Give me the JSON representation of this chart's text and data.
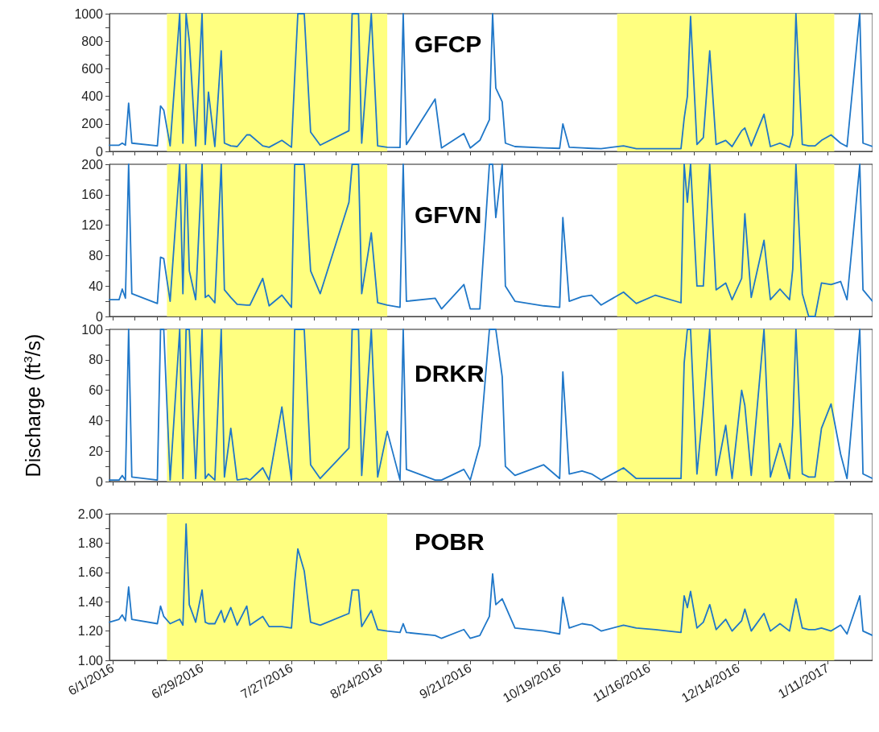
{
  "chart_data": [
    {
      "type": "line",
      "title": "GFCP",
      "tick_labels": "y",
      "xlim": [
        "2016-05-31",
        "2017-01-25"
      ],
      "xticks": [
        {
          "value": "2016-06-01",
          "label": null
        },
        {
          "value": "2016-06-08",
          "label": null
        },
        {
          "value": "2016-06-15",
          "label": null
        },
        {
          "value": "2016-06-22",
          "label": null
        },
        {
          "value": "2016-06-29",
          "label": null
        },
        {
          "value": "2016-07-06",
          "label": null
        },
        {
          "value": "2016-07-13",
          "label": null
        },
        {
          "value": "2016-07-20",
          "label": null
        },
        {
          "value": "2016-07-27",
          "label": null
        },
        {
          "value": "2016-08-03",
          "label": null
        },
        {
          "value": "2016-08-10",
          "label": null
        },
        {
          "value": "2016-08-17",
          "label": null
        },
        {
          "value": "2016-08-24",
          "label": null
        },
        {
          "value": "2016-08-31",
          "label": null
        },
        {
          "value": "2016-09-07",
          "label": null
        },
        {
          "value": "2016-09-14",
          "label": null
        },
        {
          "value": "2016-09-21",
          "label": null
        },
        {
          "value": "2016-09-28",
          "label": null
        },
        {
          "value": "2016-10-05",
          "label": null
        },
        {
          "value": "2016-10-12",
          "label": null
        },
        {
          "value": "2016-10-19",
          "label": null
        },
        {
          "value": "2016-10-26",
          "label": null
        },
        {
          "value": "2016-11-02",
          "label": null
        },
        {
          "value": "2016-11-09",
          "label": null
        },
        {
          "value": "2016-11-16",
          "label": null
        },
        {
          "value": "2016-11-23",
          "label": null
        },
        {
          "value": "2016-11-30",
          "label": null
        },
        {
          "value": "2016-12-07",
          "label": null
        },
        {
          "value": "2016-12-14",
          "label": null
        },
        {
          "value": "2016-12-21",
          "label": null
        },
        {
          "value": "2016-12-28",
          "label": null
        },
        {
          "value": "2017-01-04",
          "label": null
        },
        {
          "value": "2017-01-11",
          "label": null
        },
        {
          "value": "2017-01-18",
          "label": null
        }
      ],
      "ylim": [
        0,
        1000
      ],
      "yticks": [
        0,
        {
          "value": 100,
          "label": null
        },
        200,
        {
          "value": 300,
          "label": null
        },
        400,
        {
          "value": 500,
          "label": null
        },
        600,
        {
          "value": 700,
          "label": null
        },
        800,
        {
          "value": 900,
          "label": null
        },
        1000
      ],
      "bands": [
        {
          "axis": "x",
          "from": "2016-06-18",
          "to": "2016-08-26",
          "color": "#ffff80"
        },
        {
          "axis": "x",
          "from": "2016-11-06",
          "to": "2017-01-13",
          "color": "#ffff80"
        }
      ],
      "x": [
        "2016-05-31",
        "2016-06-03",
        "2016-06-04",
        "2016-06-05",
        "2016-06-06",
        "2016-06-07",
        "2016-06-15",
        "2016-06-16",
        "2016-06-17",
        "2016-06-19",
        "2016-06-22",
        "2016-06-23",
        "2016-06-24",
        "2016-06-25",
        "2016-06-27",
        "2016-06-29",
        "2016-06-30",
        "2016-07-01",
        "2016-07-03",
        "2016-07-05",
        "2016-07-06",
        "2016-07-08",
        "2016-07-10",
        "2016-07-13",
        "2016-07-14",
        "2016-07-18",
        "2016-07-20",
        "2016-07-24",
        "2016-07-27",
        "2016-07-28",
        "2016-07-29",
        "2016-07-31",
        "2016-08-02",
        "2016-08-05",
        "2016-08-14",
        "2016-08-15",
        "2016-08-17",
        "2016-08-18",
        "2016-08-21",
        "2016-08-23",
        "2016-08-26",
        "2016-08-30",
        "2016-08-31",
        "2016-09-01",
        "2016-09-10",
        "2016-09-12",
        "2016-09-19",
        "2016-09-21",
        "2016-09-24",
        "2016-09-27",
        "2016-09-28",
        "2016-09-29",
        "2016-10-01",
        "2016-10-02",
        "2016-10-05",
        "2016-10-14",
        "2016-10-19",
        "2016-10-20",
        "2016-10-22",
        "2016-10-26",
        "2016-10-29",
        "2016-11-01",
        "2016-11-08",
        "2016-11-12",
        "2016-11-18",
        "2016-11-26",
        "2016-11-27",
        "2016-11-28",
        "2016-11-29",
        "2016-12-01",
        "2016-12-03",
        "2016-12-05",
        "2016-12-07",
        "2016-12-10",
        "2016-12-12",
        "2016-12-15",
        "2016-12-16",
        "2016-12-18",
        "2016-12-22",
        "2016-12-24",
        "2016-12-27",
        "2016-12-30",
        "2016-12-31",
        "2017-01-01",
        "2017-01-03",
        "2017-01-05",
        "2017-01-07",
        "2017-01-09",
        "2017-01-12",
        "2017-01-15",
        "2017-01-17",
        "2017-01-21",
        "2017-01-22",
        "2017-01-25"
      ],
      "series": [
        {
          "color": "#1f77c8",
          "values": [
            45,
            45,
            60,
            45,
            350,
            60,
            40,
            330,
            300,
            40,
            1000,
            60,
            1000,
            800,
            40,
            1000,
            50,
            430,
            35,
            730,
            60,
            40,
            35,
            120,
            120,
            40,
            30,
            80,
            30,
            530,
            1000,
            1000,
            140,
            45,
            150,
            1000,
            1000,
            60,
            1000,
            40,
            30,
            28,
            1000,
            50,
            380,
            25,
            130,
            25,
            80,
            230,
            1000,
            460,
            360,
            60,
            35,
            25,
            22,
            200,
            30,
            25,
            22,
            20,
            40,
            20,
            20,
            20,
            240,
            400,
            980,
            50,
            100,
            730,
            50,
            80,
            35,
            150,
            170,
            40,
            270,
            35,
            60,
            30,
            120,
            1000,
            50,
            40,
            40,
            80,
            120,
            60,
            35,
            1000,
            60,
            35
          ]
        }
      ]
    },
    {
      "type": "line",
      "title": "GFVN",
      "tick_labels": "y",
      "xlim": [
        "2016-05-31",
        "2017-01-25"
      ],
      "xticks": [
        {
          "value": "2016-06-01",
          "label": null
        },
        {
          "value": "2016-06-08",
          "label": null
        },
        {
          "value": "2016-06-15",
          "label": null
        },
        {
          "value": "2016-06-22",
          "label": null
        },
        {
          "value": "2016-06-29",
          "label": null
        },
        {
          "value": "2016-07-06",
          "label": null
        },
        {
          "value": "2016-07-13",
          "label": null
        },
        {
          "value": "2016-07-20",
          "label": null
        },
        {
          "value": "2016-07-27",
          "label": null
        },
        {
          "value": "2016-08-03",
          "label": null
        },
        {
          "value": "2016-08-10",
          "label": null
        },
        {
          "value": "2016-08-17",
          "label": null
        },
        {
          "value": "2016-08-24",
          "label": null
        },
        {
          "value": "2016-08-31",
          "label": null
        },
        {
          "value": "2016-09-07",
          "label": null
        },
        {
          "value": "2016-09-14",
          "label": null
        },
        {
          "value": "2016-09-21",
          "label": null
        },
        {
          "value": "2016-09-28",
          "label": null
        },
        {
          "value": "2016-10-05",
          "label": null
        },
        {
          "value": "2016-10-12",
          "label": null
        },
        {
          "value": "2016-10-19",
          "label": null
        },
        {
          "value": "2016-10-26",
          "label": null
        },
        {
          "value": "2016-11-02",
          "label": null
        },
        {
          "value": "2016-11-09",
          "label": null
        },
        {
          "value": "2016-11-16",
          "label": null
        },
        {
          "value": "2016-11-23",
          "label": null
        },
        {
          "value": "2016-11-30",
          "label": null
        },
        {
          "value": "2016-12-07",
          "label": null
        },
        {
          "value": "2016-12-14",
          "label": null
        },
        {
          "value": "2016-12-21",
          "label": null
        },
        {
          "value": "2016-12-28",
          "label": null
        },
        {
          "value": "2017-01-04",
          "label": null
        },
        {
          "value": "2017-01-11",
          "label": null
        },
        {
          "value": "2017-01-18",
          "label": null
        }
      ],
      "ylim": [
        0,
        200
      ],
      "yticks": [
        0,
        {
          "value": 20,
          "label": null
        },
        40,
        {
          "value": 60,
          "label": null
        },
        80,
        {
          "value": 100,
          "label": null
        },
        120,
        {
          "value": 140,
          "label": null
        },
        160,
        {
          "value": 180,
          "label": null
        },
        200
      ],
      "bands": [
        {
          "axis": "x",
          "from": "2016-06-18",
          "to": "2016-08-26",
          "color": "#ffff80"
        },
        {
          "axis": "x",
          "from": "2016-11-06",
          "to": "2017-01-13",
          "color": "#ffff80"
        }
      ],
      "x": [
        "2016-05-31",
        "2016-06-03",
        "2016-06-04",
        "2016-06-05",
        "2016-06-06",
        "2016-06-07",
        "2016-06-15",
        "2016-06-16",
        "2016-06-17",
        "2016-06-19",
        "2016-06-22",
        "2016-06-23",
        "2016-06-24",
        "2016-06-25",
        "2016-06-27",
        "2016-06-29",
        "2016-06-30",
        "2016-07-01",
        "2016-07-03",
        "2016-07-05",
        "2016-07-06",
        "2016-07-08",
        "2016-07-10",
        "2016-07-13",
        "2016-07-14",
        "2016-07-18",
        "2016-07-20",
        "2016-07-24",
        "2016-07-27",
        "2016-07-28",
        "2016-07-29",
        "2016-07-31",
        "2016-08-02",
        "2016-08-05",
        "2016-08-14",
        "2016-08-15",
        "2016-08-17",
        "2016-08-18",
        "2016-08-21",
        "2016-08-23",
        "2016-08-26",
        "2016-08-30",
        "2016-08-31",
        "2016-09-01",
        "2016-09-10",
        "2016-09-12",
        "2016-09-19",
        "2016-09-21",
        "2016-09-24",
        "2016-09-27",
        "2016-09-28",
        "2016-09-29",
        "2016-10-01",
        "2016-10-02",
        "2016-10-05",
        "2016-10-14",
        "2016-10-19",
        "2016-10-20",
        "2016-10-22",
        "2016-10-26",
        "2016-10-29",
        "2016-11-01",
        "2016-11-08",
        "2016-11-12",
        "2016-11-18",
        "2016-11-26",
        "2016-11-27",
        "2016-11-28",
        "2016-11-29",
        "2016-12-01",
        "2016-12-03",
        "2016-12-05",
        "2016-12-07",
        "2016-12-10",
        "2016-12-12",
        "2016-12-15",
        "2016-12-16",
        "2016-12-18",
        "2016-12-22",
        "2016-12-24",
        "2016-12-27",
        "2016-12-30",
        "2016-12-31",
        "2017-01-01",
        "2017-01-03",
        "2017-01-05",
        "2017-01-07",
        "2017-01-09",
        "2017-01-12",
        "2017-01-15",
        "2017-01-17",
        "2017-01-21",
        "2017-01-22",
        "2017-01-25"
      ],
      "series": [
        {
          "color": "#1f77c8",
          "values": [
            22,
            22,
            36,
            24,
            200,
            30,
            17,
            78,
            76,
            20,
            200,
            30,
            200,
            60,
            22,
            200,
            25,
            28,
            18,
            200,
            35,
            25,
            16,
            15,
            15,
            50,
            14,
            28,
            12,
            200,
            200,
            200,
            60,
            30,
            150,
            200,
            200,
            30,
            110,
            18,
            15,
            12,
            200,
            20,
            24,
            10,
            42,
            10,
            10,
            200,
            200,
            130,
            200,
            40,
            20,
            14,
            12,
            130,
            20,
            26,
            28,
            15,
            32,
            17,
            28,
            18,
            200,
            150,
            200,
            40,
            40,
            200,
            35,
            44,
            22,
            50,
            135,
            25,
            100,
            22,
            36,
            22,
            62,
            200,
            30,
            0,
            0,
            44,
            42,
            46,
            22,
            200,
            35,
            20
          ]
        }
      ]
    },
    {
      "type": "line",
      "title": "DRKR",
      "ylabel": "Discharge (ft$^{3}$/s)",
      "tick_labels": "y",
      "xlim": [
        "2016-05-31",
        "2017-01-25"
      ],
      "xticks": [
        {
          "value": "2016-06-01",
          "label": null
        },
        {
          "value": "2016-06-08",
          "label": null
        },
        {
          "value": "2016-06-15",
          "label": null
        },
        {
          "value": "2016-06-22",
          "label": null
        },
        {
          "value": "2016-06-29",
          "label": null
        },
        {
          "value": "2016-07-06",
          "label": null
        },
        {
          "value": "2016-07-13",
          "label": null
        },
        {
          "value": "2016-07-20",
          "label": null
        },
        {
          "value": "2016-07-27",
          "label": null
        },
        {
          "value": "2016-08-03",
          "label": null
        },
        {
          "value": "2016-08-10",
          "label": null
        },
        {
          "value": "2016-08-17",
          "label": null
        },
        {
          "value": "2016-08-24",
          "label": null
        },
        {
          "value": "2016-08-31",
          "label": null
        },
        {
          "value": "2016-09-07",
          "label": null
        },
        {
          "value": "2016-09-14",
          "label": null
        },
        {
          "value": "2016-09-21",
          "label": null
        },
        {
          "value": "2016-09-28",
          "label": null
        },
        {
          "value": "2016-10-05",
          "label": null
        },
        {
          "value": "2016-10-12",
          "label": null
        },
        {
          "value": "2016-10-19",
          "label": null
        },
        {
          "value": "2016-10-26",
          "label": null
        },
        {
          "value": "2016-11-02",
          "label": null
        },
        {
          "value": "2016-11-09",
          "label": null
        },
        {
          "value": "2016-11-16",
          "label": null
        },
        {
          "value": "2016-11-23",
          "label": null
        },
        {
          "value": "2016-11-30",
          "label": null
        },
        {
          "value": "2016-12-07",
          "label": null
        },
        {
          "value": "2016-12-14",
          "label": null
        },
        {
          "value": "2016-12-21",
          "label": null
        },
        {
          "value": "2016-12-28",
          "label": null
        },
        {
          "value": "2017-01-04",
          "label": null
        },
        {
          "value": "2017-01-11",
          "label": null
        },
        {
          "value": "2017-01-18",
          "label": null
        }
      ],
      "ylim": [
        0,
        100
      ],
      "yticks": [
        0,
        {
          "value": 10,
          "label": null
        },
        20,
        {
          "value": 30,
          "label": null
        },
        40,
        {
          "value": 50,
          "label": null
        },
        60,
        {
          "value": 70,
          "label": null
        },
        80,
        {
          "value": 90,
          "label": null
        },
        100
      ],
      "bands": [
        {
          "axis": "x",
          "from": "2016-06-18",
          "to": "2016-08-26",
          "color": "#ffff80"
        },
        {
          "axis": "x",
          "from": "2016-11-06",
          "to": "2017-01-13",
          "color": "#ffff80"
        }
      ],
      "x": [
        "2016-05-31",
        "2016-06-03",
        "2016-06-04",
        "2016-06-05",
        "2016-06-06",
        "2016-06-07",
        "2016-06-15",
        "2016-06-16",
        "2016-06-17",
        "2016-06-19",
        "2016-06-22",
        "2016-06-23",
        "2016-06-24",
        "2016-06-25",
        "2016-06-27",
        "2016-06-29",
        "2016-06-30",
        "2016-07-01",
        "2016-07-03",
        "2016-07-05",
        "2016-07-06",
        "2016-07-08",
        "2016-07-10",
        "2016-07-13",
        "2016-07-14",
        "2016-07-18",
        "2016-07-20",
        "2016-07-24",
        "2016-07-27",
        "2016-07-28",
        "2016-07-29",
        "2016-07-31",
        "2016-08-02",
        "2016-08-05",
        "2016-08-14",
        "2016-08-15",
        "2016-08-17",
        "2016-08-18",
        "2016-08-21",
        "2016-08-23",
        "2016-08-26",
        "2016-08-30",
        "2016-08-31",
        "2016-09-01",
        "2016-09-10",
        "2016-09-12",
        "2016-09-19",
        "2016-09-21",
        "2016-09-24",
        "2016-09-27",
        "2016-09-28",
        "2016-09-29",
        "2016-10-01",
        "2016-10-02",
        "2016-10-05",
        "2016-10-14",
        "2016-10-19",
        "2016-10-20",
        "2016-10-22",
        "2016-10-26",
        "2016-10-29",
        "2016-11-01",
        "2016-11-08",
        "2016-11-12",
        "2016-11-18",
        "2016-11-26",
        "2016-11-27",
        "2016-11-28",
        "2016-11-29",
        "2016-12-01",
        "2016-12-03",
        "2016-12-05",
        "2016-12-07",
        "2016-12-10",
        "2016-12-12",
        "2016-12-15",
        "2016-12-16",
        "2016-12-18",
        "2016-12-22",
        "2016-12-24",
        "2016-12-27",
        "2016-12-30",
        "2016-12-31",
        "2017-01-01",
        "2017-01-03",
        "2017-01-05",
        "2017-01-07",
        "2017-01-09",
        "2017-01-12",
        "2017-01-15",
        "2017-01-17",
        "2017-01-21",
        "2017-01-22",
        "2017-01-25"
      ],
      "series": [
        {
          "color": "#1f77c8",
          "values": [
            1,
            1,
            4,
            1,
            100,
            3,
            1,
            100,
            100,
            1,
            100,
            2,
            100,
            100,
            2,
            100,
            2,
            5,
            1,
            100,
            3,
            35,
            1,
            2,
            1,
            9,
            1,
            49,
            1,
            100,
            100,
            100,
            11,
            2,
            22,
            100,
            100,
            4,
            100,
            3,
            33,
            1,
            100,
            8,
            1,
            1,
            8,
            1,
            24,
            100,
            100,
            100,
            69,
            10,
            4,
            11,
            2,
            72,
            5,
            7,
            5,
            1,
            9,
            2,
            2,
            2,
            78,
            100,
            100,
            5,
            50,
            100,
            4,
            37,
            2,
            60,
            50,
            4,
            100,
            3,
            25,
            2,
            37,
            100,
            5,
            3,
            3,
            35,
            51,
            18,
            2,
            100,
            5,
            2
          ]
        }
      ]
    },
    {
      "type": "line",
      "title": "POBR",
      "xlim": [
        "2016-05-31",
        "2017-01-25"
      ],
      "xticks": [
        {
          "value": "2016-06-01",
          "label": "6/1/2016"
        },
        {
          "value": "2016-06-08",
          "label": null
        },
        {
          "value": "2016-06-15",
          "label": null
        },
        {
          "value": "2016-06-22",
          "label": null
        },
        {
          "value": "2016-06-29",
          "label": "6/29/2016"
        },
        {
          "value": "2016-07-06",
          "label": null
        },
        {
          "value": "2016-07-13",
          "label": null
        },
        {
          "value": "2016-07-20",
          "label": null
        },
        {
          "value": "2016-07-27",
          "label": "7/27/2016"
        },
        {
          "value": "2016-08-03",
          "label": null
        },
        {
          "value": "2016-08-10",
          "label": null
        },
        {
          "value": "2016-08-17",
          "label": null
        },
        {
          "value": "2016-08-24",
          "label": "8/24/2016"
        },
        {
          "value": "2016-08-31",
          "label": null
        },
        {
          "value": "2016-09-07",
          "label": null
        },
        {
          "value": "2016-09-14",
          "label": null
        },
        {
          "value": "2016-09-21",
          "label": "9/21/2016"
        },
        {
          "value": "2016-09-28",
          "label": null
        },
        {
          "value": "2016-10-05",
          "label": null
        },
        {
          "value": "2016-10-12",
          "label": null
        },
        {
          "value": "2016-10-19",
          "label": "10/19/2016"
        },
        {
          "value": "2016-10-26",
          "label": null
        },
        {
          "value": "2016-11-02",
          "label": null
        },
        {
          "value": "2016-11-09",
          "label": null
        },
        {
          "value": "2016-11-16",
          "label": "11/16/2016"
        },
        {
          "value": "2016-11-23",
          "label": null
        },
        {
          "value": "2016-11-30",
          "label": null
        },
        {
          "value": "2016-12-07",
          "label": null
        },
        {
          "value": "2016-12-14",
          "label": "12/14/2016"
        },
        {
          "value": "2016-12-21",
          "label": null
        },
        {
          "value": "2016-12-28",
          "label": null
        },
        {
          "value": "2017-01-04",
          "label": null
        },
        {
          "value": "2017-01-11",
          "label": "1/11/2017"
        },
        {
          "value": "2017-01-18",
          "label": null
        }
      ],
      "ylim": [
        1,
        2
      ],
      "yticks": [
        {
          "value": 1,
          "label": "1.00"
        },
        {
          "value": 1.1,
          "label": null
        },
        {
          "value": 1.2,
          "label": "1.20"
        },
        {
          "value": 1.3,
          "label": null
        },
        {
          "value": 1.4,
          "label": "1.40"
        },
        {
          "value": 1.5,
          "label": null
        },
        {
          "value": 1.6,
          "label": "1.60"
        },
        {
          "value": 1.7,
          "label": null
        },
        {
          "value": 1.8,
          "label": "1.80"
        },
        {
          "value": 1.9,
          "label": null
        },
        {
          "value": 2,
          "label": "2.00"
        }
      ],
      "bands": [
        {
          "axis": "x",
          "from": "2016-06-18",
          "to": "2016-08-26",
          "color": "#ffff80"
        },
        {
          "axis": "x",
          "from": "2016-11-06",
          "to": "2017-01-13",
          "color": "#ffff80"
        }
      ],
      "x": [
        "2016-05-31",
        "2016-06-03",
        "2016-06-04",
        "2016-06-05",
        "2016-06-06",
        "2016-06-07",
        "2016-06-15",
        "2016-06-16",
        "2016-06-17",
        "2016-06-19",
        "2016-06-22",
        "2016-06-23",
        "2016-06-24",
        "2016-06-25",
        "2016-06-27",
        "2016-06-29",
        "2016-06-30",
        "2016-07-01",
        "2016-07-03",
        "2016-07-05",
        "2016-07-06",
        "2016-07-08",
        "2016-07-10",
        "2016-07-13",
        "2016-07-14",
        "2016-07-18",
        "2016-07-20",
        "2016-07-24",
        "2016-07-27",
        "2016-07-28",
        "2016-07-29",
        "2016-07-31",
        "2016-08-02",
        "2016-08-05",
        "2016-08-14",
        "2016-08-15",
        "2016-08-17",
        "2016-08-18",
        "2016-08-21",
        "2016-08-23",
        "2016-08-26",
        "2016-08-30",
        "2016-08-31",
        "2016-09-01",
        "2016-09-10",
        "2016-09-12",
        "2016-09-19",
        "2016-09-21",
        "2016-09-24",
        "2016-09-27",
        "2016-09-28",
        "2016-09-29",
        "2016-10-01",
        "2016-10-02",
        "2016-10-05",
        "2016-10-14",
        "2016-10-19",
        "2016-10-20",
        "2016-10-22",
        "2016-10-26",
        "2016-10-29",
        "2016-11-01",
        "2016-11-08",
        "2016-11-12",
        "2016-11-18",
        "2016-11-26",
        "2016-11-27",
        "2016-11-28",
        "2016-11-29",
        "2016-12-01",
        "2016-12-03",
        "2016-12-05",
        "2016-12-07",
        "2016-12-10",
        "2016-12-12",
        "2016-12-15",
        "2016-12-16",
        "2016-12-18",
        "2016-12-22",
        "2016-12-24",
        "2016-12-27",
        "2016-12-30",
        "2016-12-31",
        "2017-01-01",
        "2017-01-03",
        "2017-01-05",
        "2017-01-07",
        "2017-01-09",
        "2017-01-12",
        "2017-01-15",
        "2017-01-17",
        "2017-01-21",
        "2017-01-22",
        "2017-01-25"
      ],
      "series": [
        {
          "color": "#1f77c8",
          "values": [
            1.26,
            1.28,
            1.31,
            1.27,
            1.5,
            1.28,
            1.25,
            1.37,
            1.3,
            1.25,
            1.28,
            1.24,
            1.93,
            1.38,
            1.26,
            1.48,
            1.26,
            1.25,
            1.25,
            1.34,
            1.26,
            1.36,
            1.24,
            1.37,
            1.24,
            1.3,
            1.23,
            1.23,
            1.22,
            1.53,
            1.76,
            1.61,
            1.26,
            1.24,
            1.32,
            1.48,
            1.48,
            1.23,
            1.34,
            1.21,
            1.2,
            1.19,
            1.25,
            1.19,
            1.17,
            1.15,
            1.21,
            1.15,
            1.17,
            1.3,
            1.59,
            1.38,
            1.42,
            1.37,
            1.22,
            1.2,
            1.18,
            1.43,
            1.22,
            1.25,
            1.24,
            1.2,
            1.24,
            1.22,
            1.21,
            1.19,
            1.44,
            1.36,
            1.47,
            1.22,
            1.26,
            1.38,
            1.21,
            1.28,
            1.2,
            1.27,
            1.35,
            1.2,
            1.32,
            1.2,
            1.25,
            1.2,
            1.31,
            1.42,
            1.22,
            1.21,
            1.21,
            1.22,
            1.2,
            1.24,
            1.18,
            1.44,
            1.2,
            1.17
          ]
        }
      ]
    }
  ]
}
